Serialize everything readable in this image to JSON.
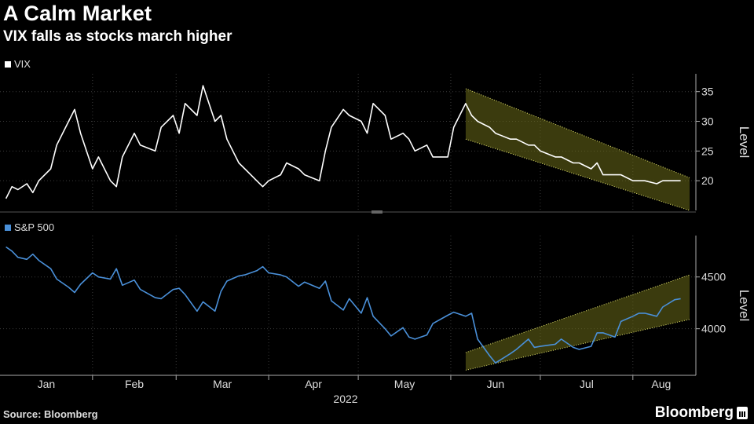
{
  "header": {
    "title": "A Calm Market",
    "subtitle": "VIX falls as stocks march higher"
  },
  "footer": {
    "source": "Source: Bloomberg",
    "brand": "Bloomberg"
  },
  "colors": {
    "vix": "#ffffff",
    "spx": "#4a90d9",
    "channel": "#6b6b1a"
  },
  "chart_data": [
    {
      "type": "line",
      "legend": "VIX",
      "ylabel": "Level",
      "ylim": [
        15,
        38
      ],
      "yticks": [
        20,
        25,
        30,
        35
      ],
      "x": [
        "2022-01-03",
        "2022-01-05",
        "2022-01-07",
        "2022-01-10",
        "2022-01-12",
        "2022-01-14",
        "2022-01-18",
        "2022-01-20",
        "2022-01-24",
        "2022-01-26",
        "2022-01-28",
        "2022-02-01",
        "2022-02-03",
        "2022-02-07",
        "2022-02-09",
        "2022-02-11",
        "2022-02-15",
        "2022-02-17",
        "2022-02-22",
        "2022-02-24",
        "2022-02-28",
        "2022-03-02",
        "2022-03-04",
        "2022-03-08",
        "2022-03-10",
        "2022-03-14",
        "2022-03-16",
        "2022-03-18",
        "2022-03-22",
        "2022-03-24",
        "2022-03-28",
        "2022-03-30",
        "2022-04-01",
        "2022-04-05",
        "2022-04-07",
        "2022-04-11",
        "2022-04-13",
        "2022-04-18",
        "2022-04-20",
        "2022-04-22",
        "2022-04-26",
        "2022-04-28",
        "2022-05-02",
        "2022-05-04",
        "2022-05-06",
        "2022-05-10",
        "2022-05-12",
        "2022-05-16",
        "2022-05-18",
        "2022-05-20",
        "2022-05-24",
        "2022-05-26",
        "2022-05-31",
        "2022-06-02",
        "2022-06-06",
        "2022-06-08",
        "2022-06-10",
        "2022-06-14",
        "2022-06-16",
        "2022-06-21",
        "2022-06-23",
        "2022-06-27",
        "2022-06-29",
        "2022-07-01",
        "2022-07-06",
        "2022-07-08",
        "2022-07-12",
        "2022-07-14",
        "2022-07-18",
        "2022-07-20",
        "2022-07-22",
        "2022-07-26",
        "2022-07-28",
        "2022-08-01",
        "2022-08-03",
        "2022-08-05",
        "2022-08-09",
        "2022-08-11",
        "2022-08-15",
        "2022-08-17"
      ],
      "values": [
        17,
        19,
        18.5,
        19.5,
        18,
        20,
        22,
        26,
        30,
        32,
        28,
        22,
        24,
        20,
        19,
        24,
        28,
        26,
        25,
        29,
        31,
        28,
        33,
        31,
        36,
        30,
        31,
        27,
        23,
        22,
        20,
        19,
        20,
        21,
        23,
        22,
        21,
        20,
        25,
        29,
        32,
        31,
        30,
        28,
        33,
        31,
        27,
        28,
        27,
        25,
        26,
        24,
        24,
        29,
        33,
        31,
        30,
        29,
        28,
        27,
        27,
        26,
        26,
        25,
        24,
        24,
        23,
        23,
        22,
        23,
        21,
        21,
        21,
        20,
        20,
        20,
        19.5,
        20,
        20,
        20
      ],
      "channels": [
        {
          "x": [
            "2022-06-06",
            "2022-08-20"
          ],
          "upper": [
            35.5,
            20.5
          ],
          "lower": [
            27,
            15
          ]
        }
      ]
    },
    {
      "type": "line",
      "legend": "S&P 500",
      "ylabel": "Level",
      "ylim": [
        3550,
        4900
      ],
      "yticks": [
        4000,
        4500
      ],
      "x": [
        "2022-01-03",
        "2022-01-05",
        "2022-01-07",
        "2022-01-10",
        "2022-01-12",
        "2022-01-14",
        "2022-01-18",
        "2022-01-20",
        "2022-01-24",
        "2022-01-26",
        "2022-01-28",
        "2022-02-01",
        "2022-02-03",
        "2022-02-07",
        "2022-02-09",
        "2022-02-11",
        "2022-02-15",
        "2022-02-17",
        "2022-02-22",
        "2022-02-24",
        "2022-02-28",
        "2022-03-02",
        "2022-03-04",
        "2022-03-08",
        "2022-03-10",
        "2022-03-14",
        "2022-03-16",
        "2022-03-18",
        "2022-03-22",
        "2022-03-24",
        "2022-03-28",
        "2022-03-30",
        "2022-04-01",
        "2022-04-05",
        "2022-04-07",
        "2022-04-11",
        "2022-04-13",
        "2022-04-18",
        "2022-04-20",
        "2022-04-22",
        "2022-04-26",
        "2022-04-28",
        "2022-05-02",
        "2022-05-04",
        "2022-05-06",
        "2022-05-10",
        "2022-05-12",
        "2022-05-16",
        "2022-05-18",
        "2022-05-20",
        "2022-05-24",
        "2022-05-26",
        "2022-05-31",
        "2022-06-02",
        "2022-06-06",
        "2022-06-08",
        "2022-06-10",
        "2022-06-14",
        "2022-06-16",
        "2022-06-21",
        "2022-06-23",
        "2022-06-27",
        "2022-06-29",
        "2022-07-01",
        "2022-07-06",
        "2022-07-08",
        "2022-07-12",
        "2022-07-14",
        "2022-07-18",
        "2022-07-20",
        "2022-07-22",
        "2022-07-26",
        "2022-07-28",
        "2022-08-01",
        "2022-08-03",
        "2022-08-05",
        "2022-08-09",
        "2022-08-11",
        "2022-08-15",
        "2022-08-17"
      ],
      "values": [
        4790,
        4750,
        4690,
        4670,
        4720,
        4660,
        4580,
        4480,
        4400,
        4350,
        4430,
        4540,
        4500,
        4480,
        4580,
        4420,
        4470,
        4380,
        4300,
        4290,
        4380,
        4390,
        4330,
        4170,
        4260,
        4170,
        4360,
        4460,
        4510,
        4520,
        4560,
        4600,
        4540,
        4520,
        4500,
        4410,
        4450,
        4390,
        4460,
        4270,
        4180,
        4290,
        4150,
        4300,
        4120,
        4000,
        3930,
        4010,
        3920,
        3900,
        3940,
        4050,
        4130,
        4160,
        4120,
        4150,
        3900,
        3740,
        3670,
        3760,
        3800,
        3900,
        3820,
        3830,
        3850,
        3900,
        3820,
        3800,
        3830,
        3960,
        3960,
        3920,
        4070,
        4120,
        4150,
        4150,
        4120,
        4210,
        4280,
        4290
      ],
      "channels": [
        {
          "x": [
            "2022-06-06",
            "2022-08-20"
          ],
          "upper": [
            3770,
            4520
          ],
          "lower": [
            3600,
            4090
          ]
        }
      ]
    }
  ],
  "xaxis": {
    "months": [
      "Jan",
      "Feb",
      "Mar",
      "Apr",
      "May",
      "Jun",
      "Jul",
      "Aug"
    ],
    "year": "2022",
    "domain": [
      "2022-01-01",
      "2022-08-20"
    ]
  }
}
